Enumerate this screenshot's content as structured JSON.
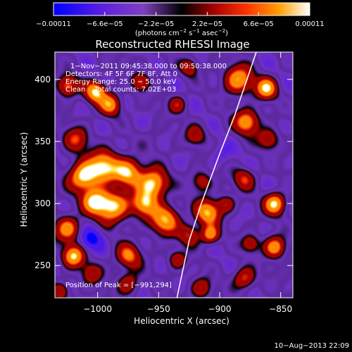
{
  "chart_data": {
    "type": "heatmap",
    "title": "Reconstructed RHESSI Image",
    "xlabel": "Heliocentric X (arcsec)",
    "ylabel": "Heliocentric Y (arcsec)",
    "xlim": [
      -1035,
      -840
    ],
    "ylim": [
      224,
      422
    ],
    "xticks": [
      -1000,
      -950,
      -900,
      -850
    ],
    "xtick_labels": [
      "−1000",
      "−950",
      "−900",
      "−850"
    ],
    "yticks": [
      250,
      300,
      350,
      400
    ],
    "ytick_labels": [
      "250",
      "300",
      "350",
      "400"
    ],
    "colorbar": {
      "min": -0.00011,
      "max": 0.00011,
      "tick_labels": [
        "−0.00011",
        "−6.6e−05",
        "−2.2e−05",
        "2.2e−05",
        "6.6e−05",
        "0.00011"
      ],
      "unit_main": "(photons cm",
      "unit_exp1": "−2",
      "unit_mid": " s",
      "unit_exp2": "−1",
      "unit_mid2": " asec",
      "unit_exp3": "−2",
      "unit_end": ")"
    },
    "annotations": {
      "time_range": "1−Nov−2011 09:45:38.000 to 09:50:38.000",
      "detectors": "Detectors: 4F 5F 6F 7F 8F, Att 0",
      "energy": "Energy Range: 25.0 − 50.0 keV",
      "clean": "Clean    Total counts: 7.02E+03",
      "peak": "Position of Peak = [−991,294]"
    },
    "blobs": [
      {
        "x": -1012,
        "y": 322,
        "v": 1.0,
        "s": 8
      },
      {
        "x": -995,
        "y": 330,
        "v": 0.9,
        "s": 9
      },
      {
        "x": -975,
        "y": 325,
        "v": 0.85,
        "s": 8
      },
      {
        "x": -955,
        "y": 316,
        "v": 1.0,
        "s": 8
      },
      {
        "x": -962,
        "y": 300,
        "v": 0.75,
        "s": 7
      },
      {
        "x": -988,
        "y": 298,
        "v": 1.0,
        "s": 9
      },
      {
        "x": -1003,
        "y": 302,
        "v": 0.85,
        "s": 7
      },
      {
        "x": -985,
        "y": 313,
        "v": -0.5,
        "s": 6
      },
      {
        "x": -1018,
        "y": 352,
        "v": 0.4,
        "s": 7
      },
      {
        "x": -1002,
        "y": 390,
        "v": 0.9,
        "s": 6
      },
      {
        "x": -990,
        "y": 380,
        "v": 0.7,
        "s": 6
      },
      {
        "x": -965,
        "y": 398,
        "v": 0.45,
        "s": 5
      },
      {
        "x": -1025,
        "y": 395,
        "v": 0.6,
        "s": 6
      },
      {
        "x": -1005,
        "y": 272,
        "v": -1.0,
        "s": 6
      },
      {
        "x": -1025,
        "y": 280,
        "v": 0.7,
        "s": 7
      },
      {
        "x": -1020,
        "y": 258,
        "v": 0.9,
        "s": 6
      },
      {
        "x": -1005,
        "y": 244,
        "v": 0.3,
        "s": 6
      },
      {
        "x": -975,
        "y": 258,
        "v": 0.55,
        "s": 7
      },
      {
        "x": -975,
        "y": 236,
        "v": 0.35,
        "s": 6
      },
      {
        "x": -945,
        "y": 287,
        "v": 0.85,
        "s": 8
      },
      {
        "x": -925,
        "y": 275,
        "v": 0.4,
        "s": 6
      },
      {
        "x": -935,
        "y": 255,
        "v": 0.35,
        "s": 5
      },
      {
        "x": -915,
        "y": 232,
        "v": 0.35,
        "s": 6
      },
      {
        "x": -910,
        "y": 293,
        "v": 0.85,
        "s": 7
      },
      {
        "x": -908,
        "y": 275,
        "v": 0.7,
        "s": 5
      },
      {
        "x": -915,
        "y": 318,
        "v": 0.3,
        "s": 6
      },
      {
        "x": -935,
        "y": 380,
        "v": 0.3,
        "s": 5
      },
      {
        "x": -920,
        "y": 355,
        "v": 0.25,
        "s": 6
      },
      {
        "x": -955,
        "y": 350,
        "v": -0.2,
        "s": 7
      },
      {
        "x": -885,
        "y": 400,
        "v": 0.8,
        "s": 8
      },
      {
        "x": -862,
        "y": 393,
        "v": 0.9,
        "s": 6
      },
      {
        "x": -878,
        "y": 366,
        "v": 0.75,
        "s": 7
      },
      {
        "x": -860,
        "y": 352,
        "v": 0.35,
        "s": 6
      },
      {
        "x": -900,
        "y": 340,
        "v": -0.55,
        "s": 6
      },
      {
        "x": -880,
        "y": 320,
        "v": 0.4,
        "s": 6
      },
      {
        "x": -895,
        "y": 300,
        "v": 0.3,
        "s": 5
      },
      {
        "x": -855,
        "y": 300,
        "v": 0.95,
        "s": 6
      },
      {
        "x": -855,
        "y": 265,
        "v": 0.8,
        "s": 6
      },
      {
        "x": -875,
        "y": 268,
        "v": 0.35,
        "s": 5
      },
      {
        "x": -880,
        "y": 240,
        "v": 0.5,
        "s": 6
      },
      {
        "x": -900,
        "y": 248,
        "v": -0.3,
        "s": 5
      },
      {
        "x": -948,
        "y": 410,
        "v": -0.25,
        "s": 6
      },
      {
        "x": -925,
        "y": 410,
        "v": 0.3,
        "s": 5
      },
      {
        "x": -1030,
        "y": 230,
        "v": 0.3,
        "s": 5
      }
    ],
    "limb": [
      [
        -935,
        224
      ],
      [
        -925,
        270
      ],
      [
        -915,
        300
      ],
      [
        -900,
        340
      ],
      [
        -888,
        370
      ],
      [
        -870,
        422
      ]
    ]
  },
  "footer": {
    "timestamp": "10−Aug−2013 22:09"
  }
}
